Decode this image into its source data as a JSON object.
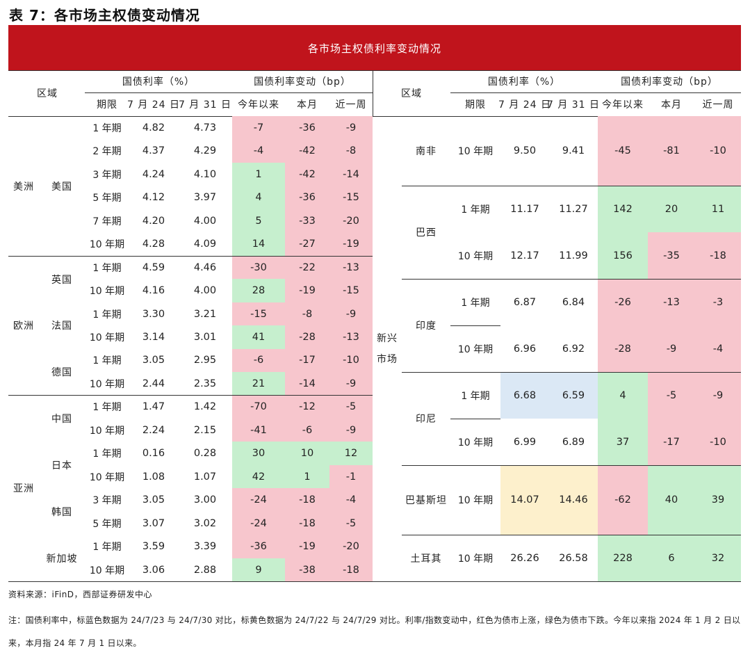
{
  "title": "表 7：各市场主权债变动情况",
  "banner": "各市场主权债利率变动情况",
  "colors": {
    "banner": "#c0141c",
    "rise": "#f7c6cd",
    "fall": "#c6efce",
    "blue_date": "#dbe8f5",
    "yellow_date": "#fdf0cc"
  },
  "headers": {
    "region": "区域",
    "yield_group": "国债利率（%）",
    "change_group": "国债利率变动（bp）",
    "term": "期限",
    "d1": "7 月 24 日",
    "d2": "7 月 31 日",
    "ytd": "今年以来",
    "mtd": "本月",
    "wk": "近一周"
  },
  "left_groups": {
    "americas": "美洲",
    "europe": "欧洲",
    "asia": "亚洲",
    "us": "美国",
    "uk": "英国",
    "fr": "法国",
    "de": "德国",
    "cn": "中国",
    "jp": "日本",
    "kr": "韩国",
    "sg": "新加坡"
  },
  "left_rows": [
    {
      "term": "1 年期",
      "d1": "4.82",
      "d2": "4.73",
      "ytd": "-7",
      "mtd": "-36",
      "wk": "-9"
    },
    {
      "term": "2 年期",
      "d1": "4.37",
      "d2": "4.29",
      "ytd": "-4",
      "mtd": "-42",
      "wk": "-8"
    },
    {
      "term": "3 年期",
      "d1": "4.24",
      "d2": "4.10",
      "ytd": "1",
      "mtd": "-42",
      "wk": "-14"
    },
    {
      "term": "5 年期",
      "d1": "4.12",
      "d2": "3.97",
      "ytd": "4",
      "mtd": "-36",
      "wk": "-15"
    },
    {
      "term": "7 年期",
      "d1": "4.20",
      "d2": "4.00",
      "ytd": "5",
      "mtd": "-33",
      "wk": "-20"
    },
    {
      "term": "10 年期",
      "d1": "4.28",
      "d2": "4.09",
      "ytd": "14",
      "mtd": "-27",
      "wk": "-19"
    },
    {
      "term": "1 年期",
      "d1": "4.59",
      "d2": "4.46",
      "ytd": "-30",
      "mtd": "-22",
      "wk": "-13"
    },
    {
      "term": "10 年期",
      "d1": "4.16",
      "d2": "4.00",
      "ytd": "28",
      "mtd": "-19",
      "wk": "-15"
    },
    {
      "term": "1 年期",
      "d1": "3.30",
      "d2": "3.21",
      "ytd": "-15",
      "mtd": "-8",
      "wk": "-9"
    },
    {
      "term": "10 年期",
      "d1": "3.14",
      "d2": "3.01",
      "ytd": "41",
      "mtd": "-28",
      "wk": "-13"
    },
    {
      "term": "1 年期",
      "d1": "3.05",
      "d2": "2.95",
      "ytd": "-6",
      "mtd": "-17",
      "wk": "-10"
    },
    {
      "term": "10 年期",
      "d1": "2.44",
      "d2": "2.35",
      "ytd": "21",
      "mtd": "-14",
      "wk": "-9"
    },
    {
      "term": "1 年期",
      "d1": "1.47",
      "d2": "1.42",
      "ytd": "-70",
      "mtd": "-12",
      "wk": "-5"
    },
    {
      "term": "10 年期",
      "d1": "2.24",
      "d2": "2.15",
      "ytd": "-41",
      "mtd": "-6",
      "wk": "-9"
    },
    {
      "term": "1 年期",
      "d1": "0.16",
      "d2": "0.28",
      "ytd": "30",
      "mtd": "10",
      "wk": "12"
    },
    {
      "term": "10 年期",
      "d1": "1.08",
      "d2": "1.07",
      "ytd": "42",
      "mtd": "1",
      "wk": "-1"
    },
    {
      "term": "3 年期",
      "d1": "3.05",
      "d2": "3.00",
      "ytd": "-24",
      "mtd": "-18",
      "wk": "-4"
    },
    {
      "term": "5 年期",
      "d1": "3.07",
      "d2": "3.02",
      "ytd": "-24",
      "mtd": "-18",
      "wk": "-5"
    },
    {
      "term": "1 年期",
      "d1": "3.59",
      "d2": "3.39",
      "ytd": "-36",
      "mtd": "-19",
      "wk": "-20"
    },
    {
      "term": "10 年期",
      "d1": "3.06",
      "d2": "2.88",
      "ytd": "9",
      "mtd": "-38",
      "wk": "-18"
    }
  ],
  "emerging": {
    "label_1": "新兴",
    "label_2": "市场",
    "za": "南非",
    "br": "巴西",
    "in": "印度",
    "id": "印尼",
    "pk": "巴基斯坦",
    "tr": "土耳其"
  },
  "right_rows": [
    {
      "term": "10 年期",
      "d1": "9.50",
      "d2": "9.41",
      "ytd": "-45",
      "mtd": "-81",
      "wk": "-10"
    },
    {
      "term": "1 年期",
      "d1": "11.17",
      "d2": "11.27",
      "ytd": "142",
      "mtd": "20",
      "wk": "11"
    },
    {
      "term": "10 年期",
      "d1": "12.17",
      "d2": "11.99",
      "ytd": "156",
      "mtd": "-35",
      "wk": "-18"
    },
    {
      "term": "1 年期",
      "d1": "6.87",
      "d2": "6.84",
      "ytd": "-26",
      "mtd": "-13",
      "wk": "-3"
    },
    {
      "term": "10 年期",
      "d1": "6.96",
      "d2": "6.92",
      "ytd": "-28",
      "mtd": "-9",
      "wk": "-4"
    },
    {
      "term": "1 年期",
      "d1": "6.68",
      "d2": "6.59",
      "ytd": "4",
      "mtd": "-5",
      "wk": "-9"
    },
    {
      "term": "10 年期",
      "d1": "6.99",
      "d2": "6.89",
      "ytd": "37",
      "mtd": "-17",
      "wk": "-10"
    },
    {
      "term": "10 年期",
      "d1": "14.07",
      "d2": "14.46",
      "ytd": "-62",
      "mtd": "40",
      "wk": "39"
    },
    {
      "term": "10 年期",
      "d1": "26.26",
      "d2": "26.58",
      "ytd": "228",
      "mtd": "6",
      "wk": "32"
    }
  ],
  "source": "资料来源：iFinD，西部证券研发中心",
  "note": "注：国债利率中，标蓝色数据为 24/7/23 与 24/7/30 对比，标黄色数据为 24/7/22 与 24/7/29 对比。利率/指数变动中，红色为债市上涨，绿色为债市下跌。今年以来指 2024 年 1 月 2 日以来，本月指 24 年 7 月 1 日以来。"
}
